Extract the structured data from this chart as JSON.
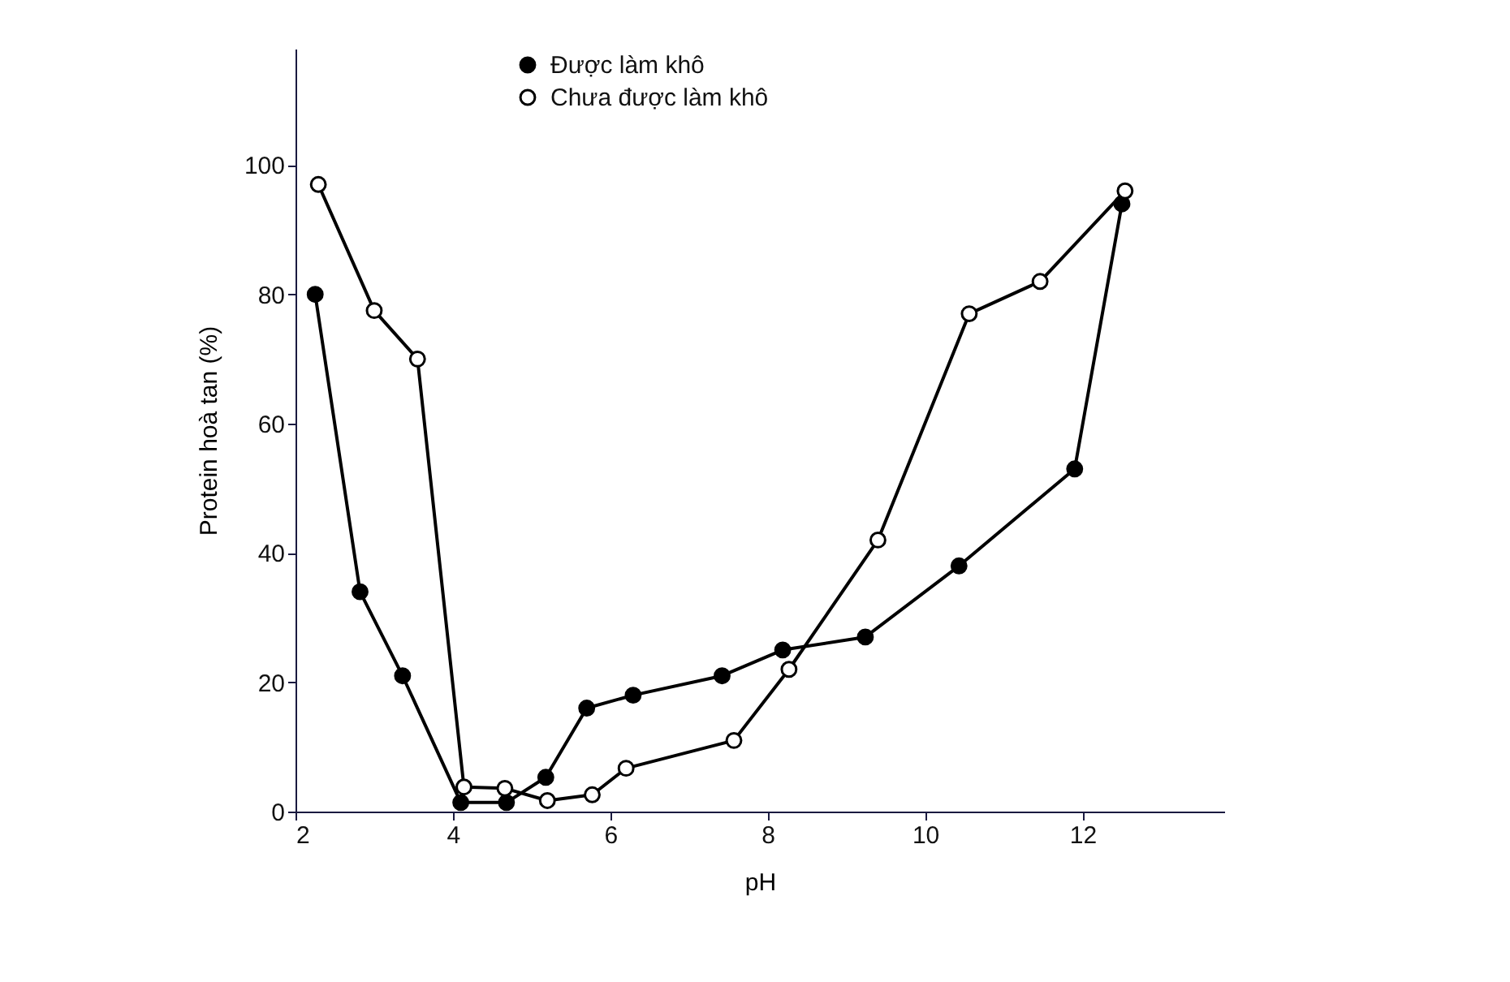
{
  "chart_data": {
    "type": "line",
    "xlabel": "pH",
    "ylabel": "Protein hoà tan (%)",
    "xlim": [
      2,
      13.8
    ],
    "xticks": [
      2,
      4,
      6,
      8,
      10,
      12
    ],
    "ylim": [
      0,
      118
    ],
    "yticks": [
      0,
      20,
      40,
      60,
      80,
      100
    ],
    "grid": false,
    "legend": "top",
    "marker": "circle",
    "line_style": "solid",
    "series": [
      {
        "name": "Được làm khô",
        "color": "#000000",
        "x": [
          2.25,
          2.82,
          3.36,
          4.1,
          4.68,
          5.18,
          5.7,
          6.29,
          7.42,
          8.19,
          9.24,
          10.43,
          11.9,
          12.5
        ],
        "values": [
          80,
          34,
          21,
          1.4,
          1.4,
          5.3,
          16,
          18,
          21,
          25,
          27,
          38,
          53,
          94
        ]
      },
      {
        "name": "Chưa được làm khô",
        "color": "#ffffff",
        "x": [
          2.29,
          3.0,
          3.55,
          4.14,
          4.66,
          5.2,
          5.77,
          6.2,
          7.57,
          8.27,
          9.4,
          10.56,
          11.46,
          12.54
        ],
        "values": [
          97,
          77.5,
          70,
          3.8,
          3.6,
          1.7,
          2.6,
          6.7,
          11,
          22,
          42,
          77,
          82,
          96
        ]
      }
    ]
  }
}
